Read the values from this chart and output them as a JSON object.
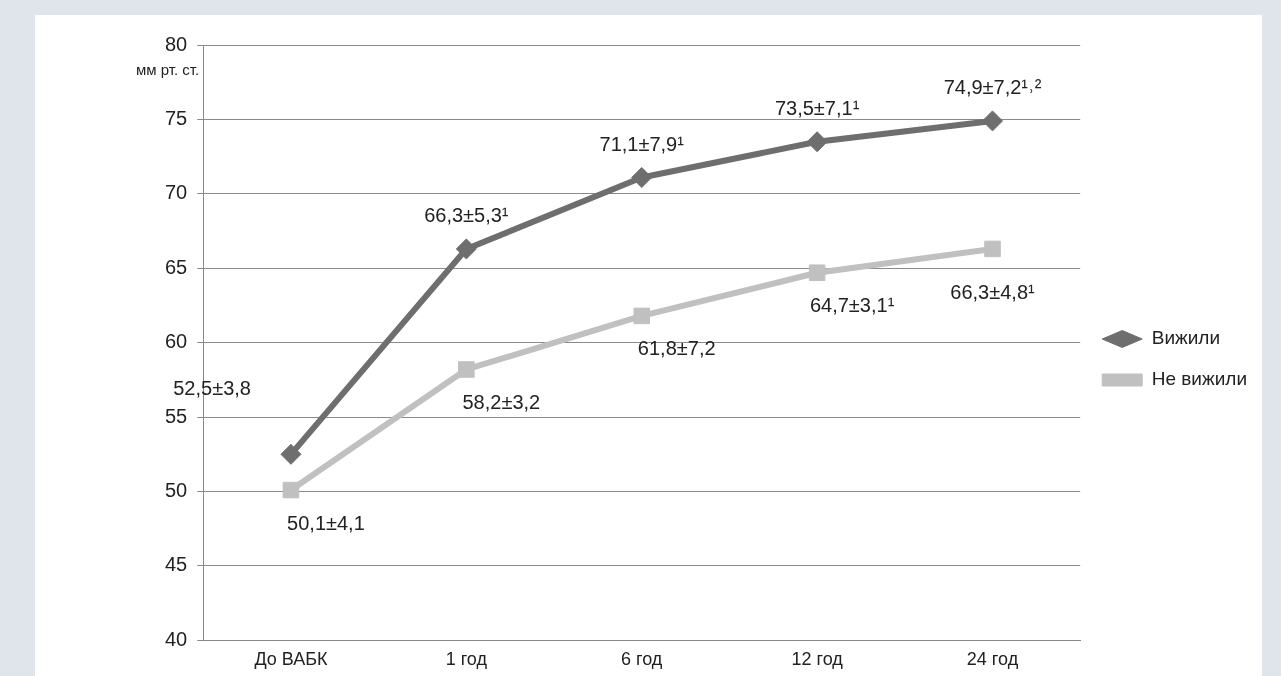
{
  "chart_data": {
    "type": "line",
    "ylabel": "мм рт. ст.",
    "categories": [
      "До ВАБК",
      "1 год",
      "6 год",
      "12 год",
      "24 год"
    ],
    "series": [
      {
        "name": "Вижили",
        "color": "#6e6e6e",
        "marker": "diamond",
        "values": [
          52.5,
          66.3,
          71.1,
          73.5,
          74.9
        ],
        "value_labels": [
          "52,5±3,8",
          "66,3±5,3¹",
          "71,1±7,9¹",
          "73,5±7,1¹",
          "74,9±7,2¹˒²"
        ]
      },
      {
        "name": "Не вижили",
        "color": "#c0c0c0",
        "marker": "square",
        "values": [
          50.1,
          58.2,
          61.8,
          64.7,
          66.3
        ],
        "value_labels": [
          "50,1±4,1",
          "58,2±3,2",
          "61,8±7,2",
          "64,7±3,1¹",
          "66,3±4,8¹"
        ]
      }
    ],
    "ylim": [
      40,
      80
    ],
    "yticks": [
      40,
      45,
      50,
      55,
      60,
      65,
      70,
      75,
      80
    ],
    "grid": "y",
    "legend": "right"
  }
}
